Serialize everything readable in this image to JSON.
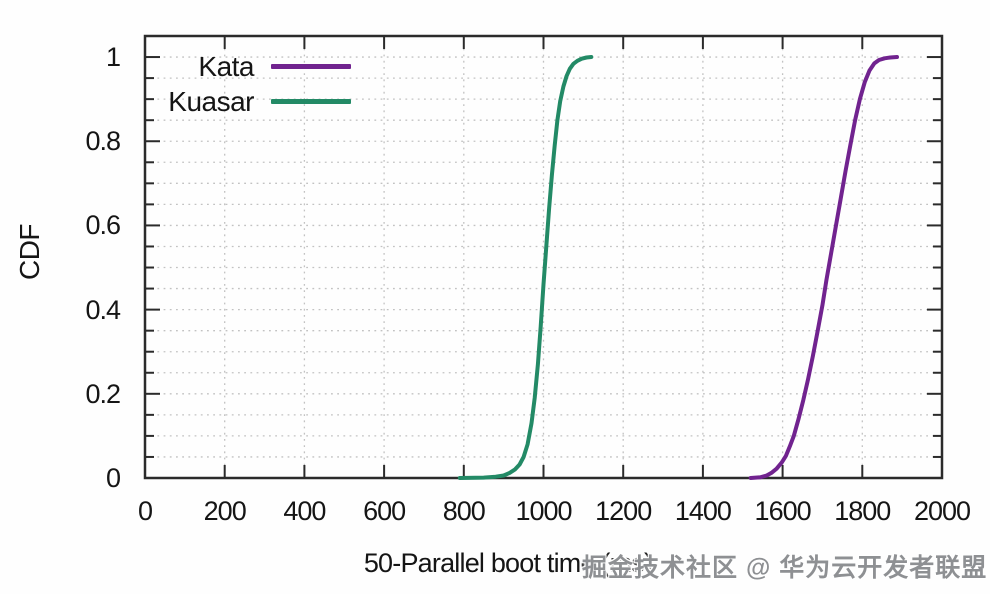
{
  "chart_data": {
    "type": "line",
    "subtype": "cdf",
    "title": "",
    "xlabel": "50-Parallel boot time (ms)",
    "ylabel": "CDF",
    "xlim": [
      0,
      2000
    ],
    "ylim": [
      0,
      1.05
    ],
    "grid": {
      "horizontal_every": 0.05,
      "vertical_every": 200,
      "style": "dotted"
    },
    "legend_position": "top-left",
    "x_axis": {
      "tick_values": [
        0,
        200,
        400,
        600,
        800,
        1000,
        1200,
        1400,
        1600,
        1800,
        2000
      ],
      "tick_labels": [
        "0",
        "200",
        "400",
        "600",
        "800",
        "1000",
        "1200",
        "1400",
        "1600",
        "1800",
        "2000"
      ]
    },
    "y_axis": {
      "tick_values": [
        0,
        0.2,
        0.4,
        0.6,
        0.8,
        1
      ],
      "tick_labels": [
        "0",
        "0.2",
        "0.4",
        "0.6",
        "0.8",
        "1"
      ],
      "minor_step": 0.05
    },
    "series": [
      {
        "name": "Kata",
        "color": "#71238f",
        "points": [
          [
            1520,
            0
          ],
          [
            1545,
            0.002
          ],
          [
            1560,
            0.006
          ],
          [
            1572,
            0.012
          ],
          [
            1585,
            0.022
          ],
          [
            1598,
            0.037
          ],
          [
            1608,
            0.052
          ],
          [
            1618,
            0.075
          ],
          [
            1628,
            0.1
          ],
          [
            1640,
            0.14
          ],
          [
            1652,
            0.185
          ],
          [
            1664,
            0.235
          ],
          [
            1676,
            0.29
          ],
          [
            1688,
            0.35
          ],
          [
            1700,
            0.41
          ],
          [
            1710,
            0.47
          ],
          [
            1722,
            0.535
          ],
          [
            1734,
            0.6
          ],
          [
            1746,
            0.665
          ],
          [
            1758,
            0.73
          ],
          [
            1770,
            0.79
          ],
          [
            1782,
            0.85
          ],
          [
            1794,
            0.9
          ],
          [
            1806,
            0.94
          ],
          [
            1818,
            0.968
          ],
          [
            1830,
            0.985
          ],
          [
            1842,
            0.993
          ],
          [
            1856,
            0.997
          ],
          [
            1870,
            0.999
          ],
          [
            1887,
            1.0
          ]
        ]
      },
      {
        "name": "Kuasar",
        "color": "#238a66",
        "points": [
          [
            790,
            0
          ],
          [
            850,
            0.001
          ],
          [
            880,
            0.003
          ],
          [
            900,
            0.006
          ],
          [
            915,
            0.012
          ],
          [
            928,
            0.02
          ],
          [
            940,
            0.032
          ],
          [
            950,
            0.05
          ],
          [
            960,
            0.08
          ],
          [
            970,
            0.13
          ],
          [
            978,
            0.19
          ],
          [
            986,
            0.27
          ],
          [
            993,
            0.36
          ],
          [
            1000,
            0.46
          ],
          [
            1007,
            0.55
          ],
          [
            1014,
            0.64
          ],
          [
            1021,
            0.72
          ],
          [
            1028,
            0.79
          ],
          [
            1035,
            0.85
          ],
          [
            1042,
            0.895
          ],
          [
            1050,
            0.93
          ],
          [
            1058,
            0.955
          ],
          [
            1066,
            0.972
          ],
          [
            1075,
            0.984
          ],
          [
            1085,
            0.991
          ],
          [
            1096,
            0.996
          ],
          [
            1108,
            0.999
          ],
          [
            1120,
            1.0
          ]
        ]
      }
    ]
  },
  "watermark": {
    "text": "掘金技术社区 @ 华为云开发者联盟",
    "color": "#8e9093"
  },
  "style_colors": {
    "frame": "#2b2b2b",
    "grid": "#c2c2c2",
    "text": "#151515",
    "background": "#fefefe"
  }
}
